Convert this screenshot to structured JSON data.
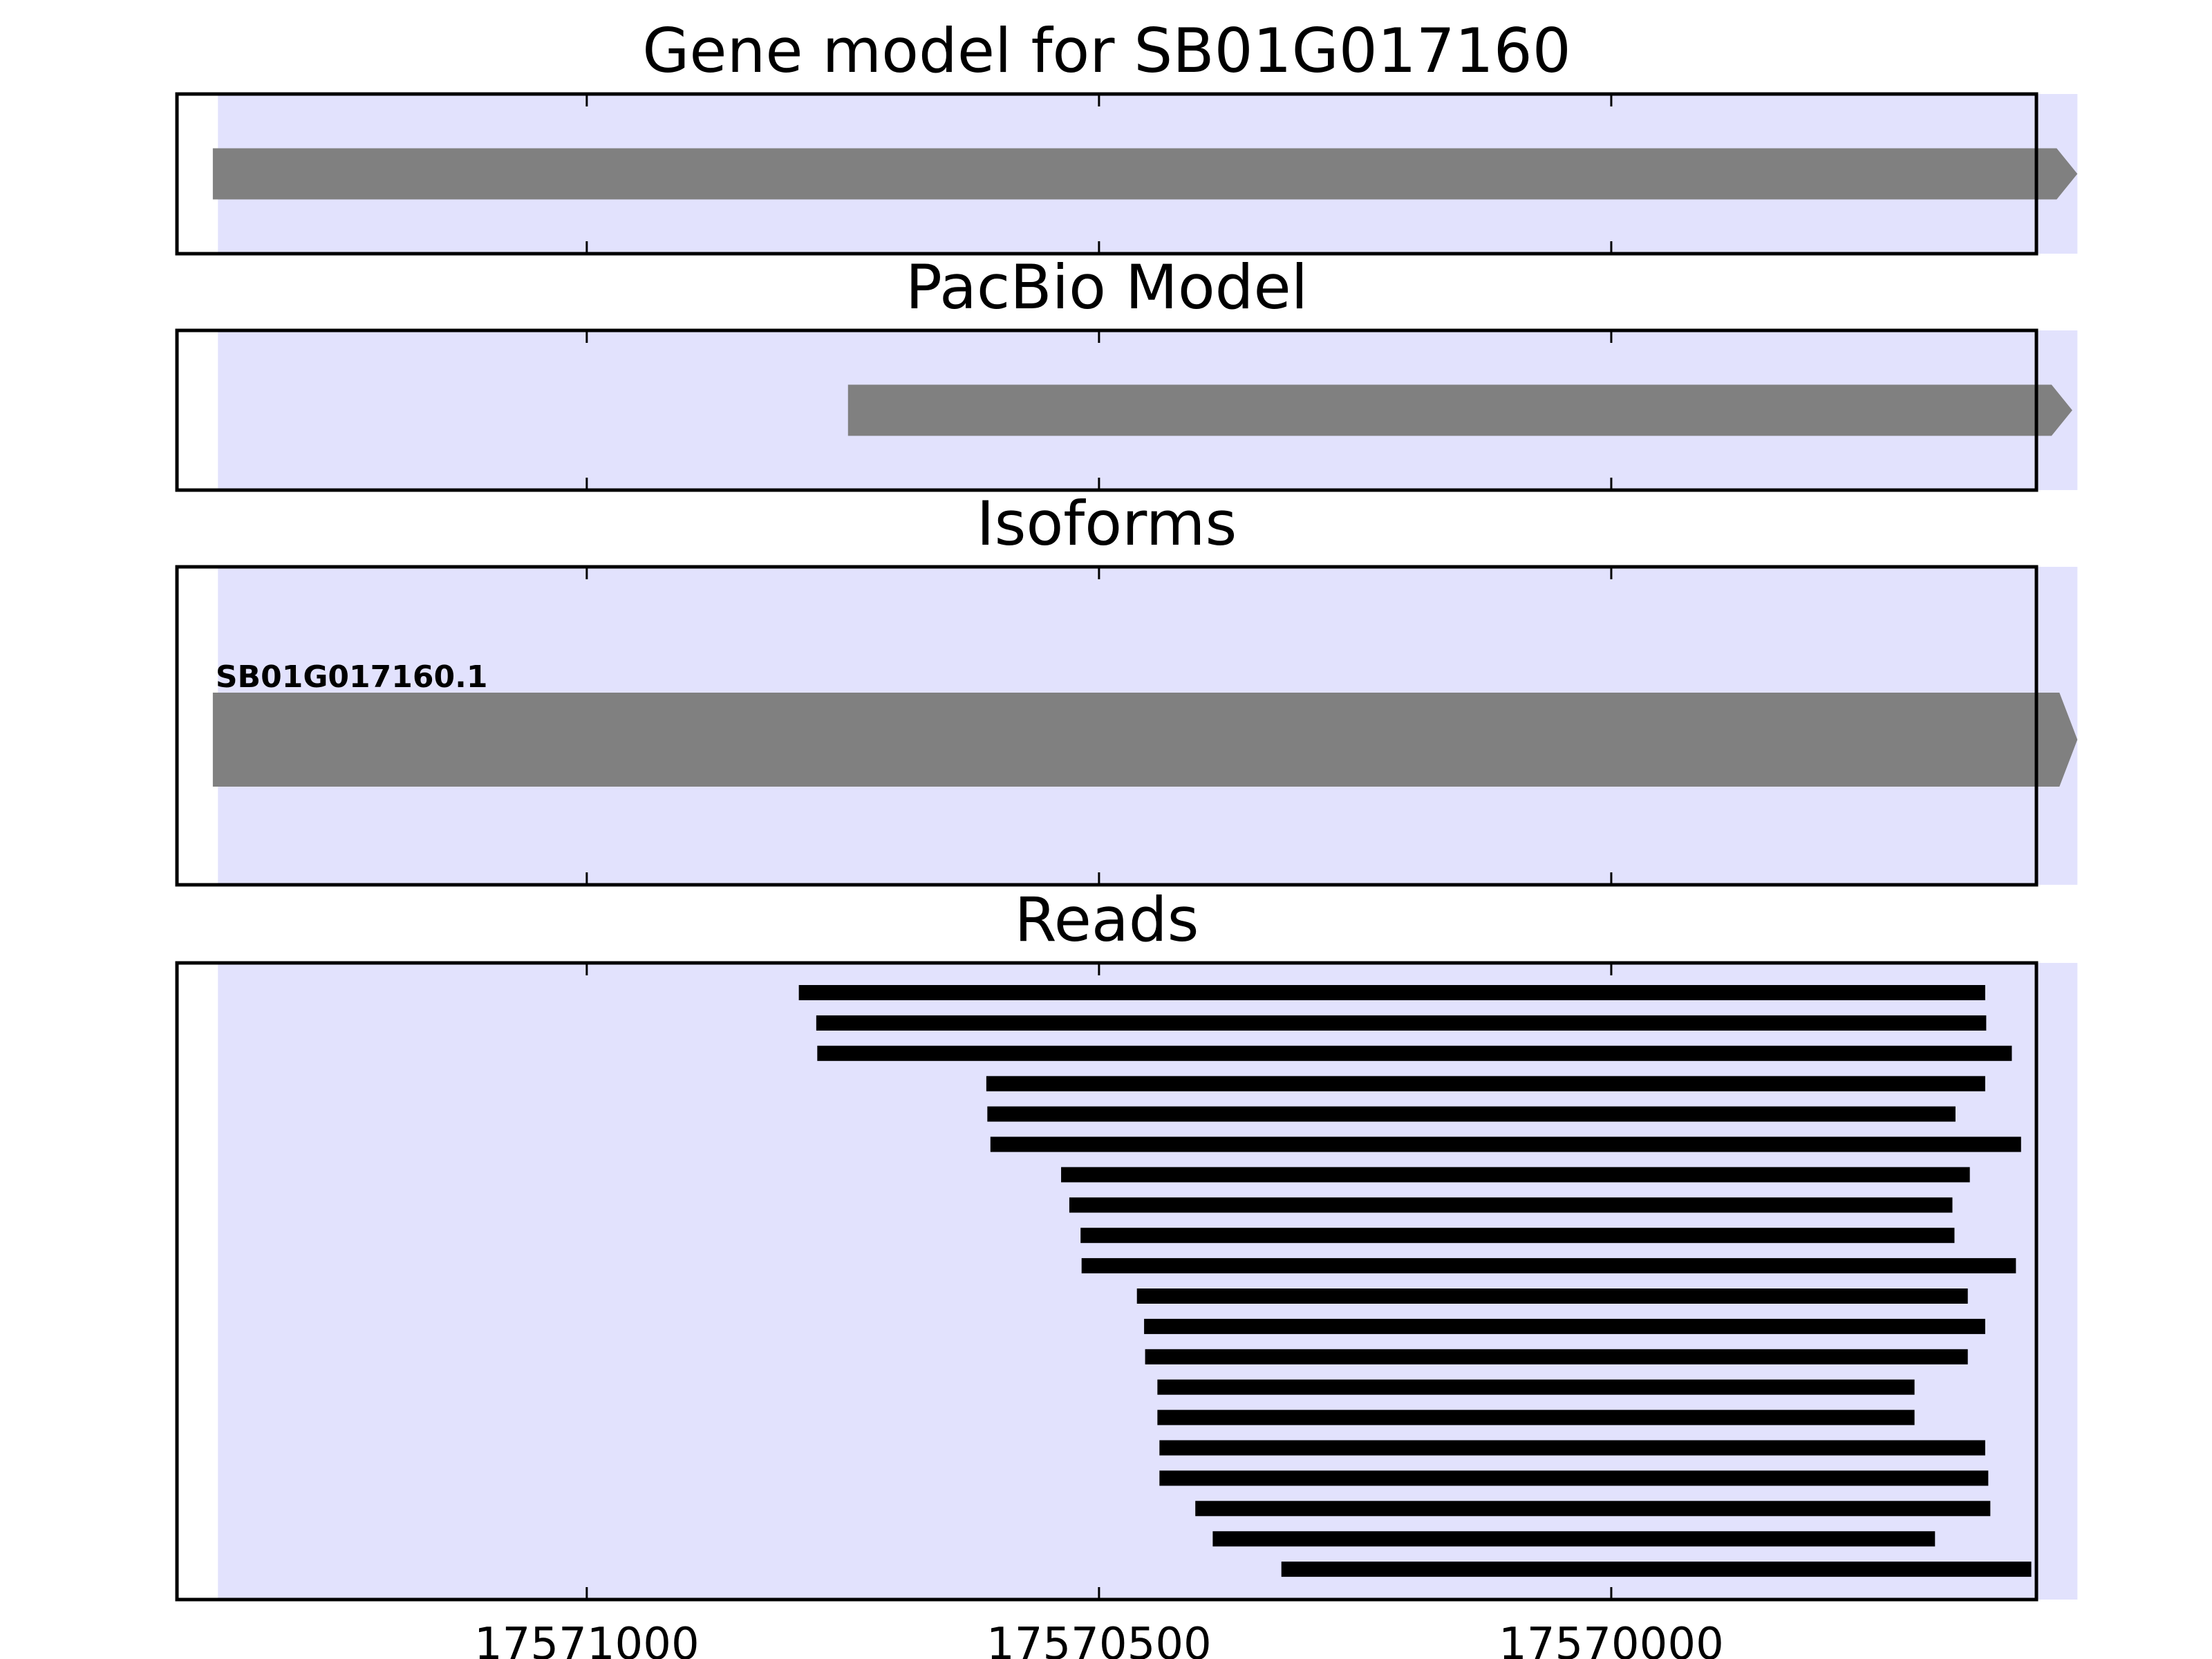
{
  "chart_data": {
    "type": "gene-track",
    "xaxis": {
      "inverted": true,
      "xlim": [
        17571400,
        17569585
      ],
      "ticks": [
        17571000,
        17570500,
        17570000
      ],
      "tick_labels": [
        "17571000",
        "17570500",
        "17570000"
      ]
    },
    "shaded_region": {
      "start": 17571360,
      "end": 17569545,
      "color": "#e2e2fd"
    },
    "panels": [
      {
        "id": "gene-model",
        "title": "Gene model for SB01G017160",
        "features": [
          {
            "start": 17571365,
            "end": 17569545,
            "strand": "-"
          }
        ]
      },
      {
        "id": "pacbio-model",
        "title": "PacBio Model",
        "features": [
          {
            "start": 17570745,
            "end": 17569550,
            "strand": "-"
          }
        ]
      },
      {
        "id": "isoforms",
        "title": "Isoforms",
        "features": [
          {
            "label": "SB01G017160.1",
            "start": 17571365,
            "end": 17569545,
            "strand": "-"
          }
        ]
      },
      {
        "id": "reads",
        "title": "Reads",
        "reads": [
          [
            17570793,
            17569635
          ],
          [
            17570776,
            17569634
          ],
          [
            17570775,
            17569609
          ],
          [
            17570610,
            17569635
          ],
          [
            17570609,
            17569664
          ],
          [
            17570606,
            17569600
          ],
          [
            17570537,
            17569650
          ],
          [
            17570529,
            17569667
          ],
          [
            17570518,
            17569665
          ],
          [
            17570517,
            17569605
          ],
          [
            17570463,
            17569652
          ],
          [
            17570456,
            17569635
          ],
          [
            17570455,
            17569652
          ],
          [
            17570443,
            17569704
          ],
          [
            17570443,
            17569704
          ],
          [
            17570441,
            17569635
          ],
          [
            17570441,
            17569632
          ],
          [
            17570406,
            17569630
          ],
          [
            17570389,
            17569684
          ],
          [
            17570322,
            17569590
          ]
        ]
      }
    ],
    "colors": {
      "feature": "#808080",
      "read": "#000000",
      "frame": "#000000"
    }
  }
}
